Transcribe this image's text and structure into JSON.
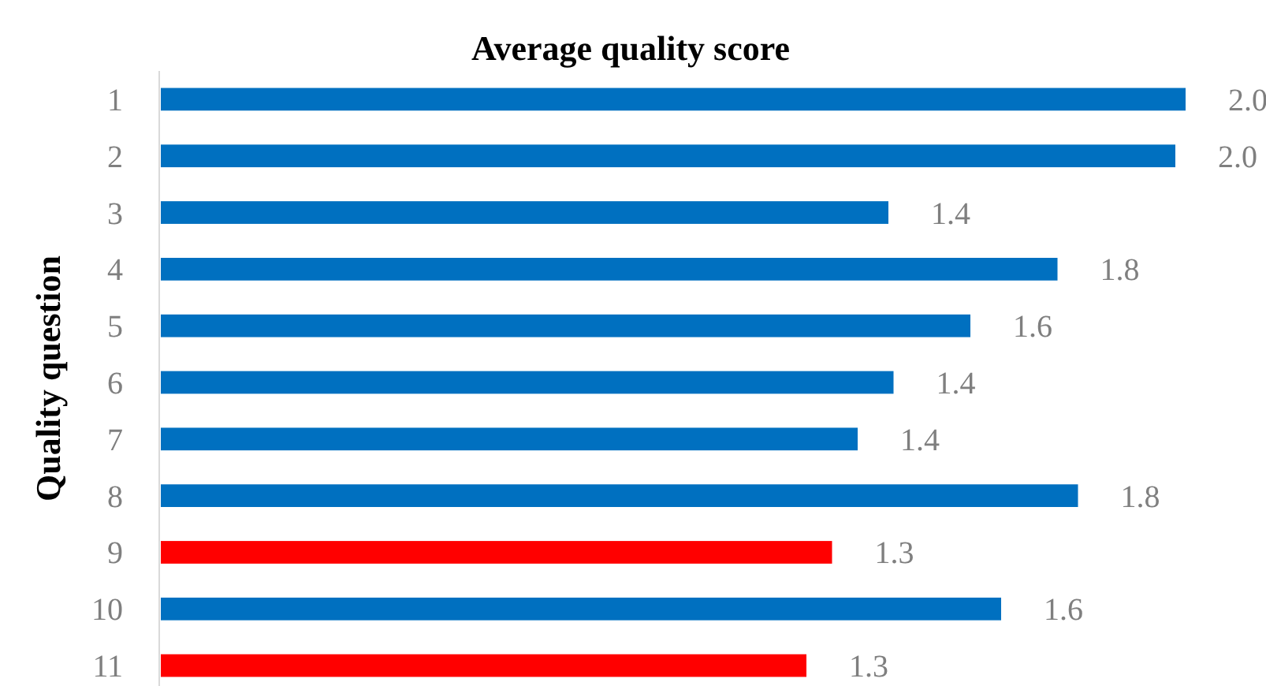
{
  "chart_data": {
    "type": "bar",
    "orientation": "horizontal",
    "title": "Average quality score",
    "ylabel": "Quality question",
    "categories": [
      "1",
      "2",
      "3",
      "4",
      "5",
      "6",
      "7",
      "8",
      "9",
      "10",
      "11"
    ],
    "values": [
      2.0,
      1.98,
      1.42,
      1.75,
      1.58,
      1.43,
      1.36,
      1.79,
      1.31,
      1.64,
      1.26
    ],
    "value_labels": [
      "2.0",
      "2.0",
      "1.4",
      "1.8",
      "1.6",
      "1.4",
      "1.4",
      "1.8",
      "1.3",
      "1.6",
      "1.3"
    ],
    "colors": [
      "#0070c0",
      "#0070c0",
      "#0070c0",
      "#0070c0",
      "#0070c0",
      "#0070c0",
      "#0070c0",
      "#0070c0",
      "#ff0000",
      "#0070c0",
      "#ff0000"
    ]
  }
}
